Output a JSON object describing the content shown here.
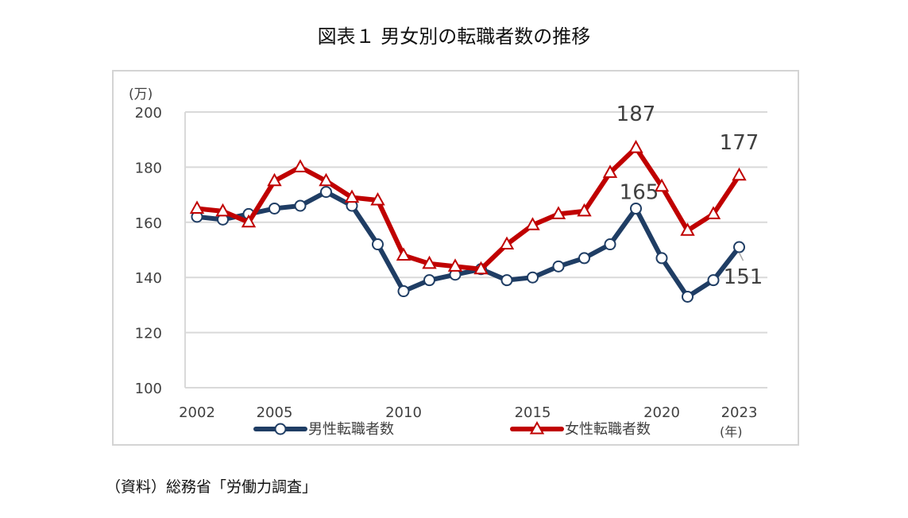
{
  "title": "図表１ 男女別の転職者数の推移",
  "source": "（資料）総務省「労働力調査」",
  "chart_data": {
    "type": "line",
    "x": [
      2002,
      2003,
      2004,
      2005,
      2006,
      2007,
      2008,
      2009,
      2010,
      2011,
      2012,
      2013,
      2014,
      2015,
      2016,
      2017,
      2018,
      2019,
      2020,
      2021,
      2022,
      2023
    ],
    "x_tick_labels": [
      "2002",
      "2005",
      "2010",
      "2015",
      "2020",
      "2023"
    ],
    "x_unit": "(年)",
    "y_unit": "(万)",
    "ylim": [
      100,
      200
    ],
    "y_ticks": [
      100,
      120,
      140,
      160,
      180,
      200
    ],
    "grid": true,
    "legend_position": "bottom",
    "series": [
      {
        "name": "男性転職者数",
        "color": "#1f3d64",
        "marker": "circle",
        "values": [
          162,
          161,
          163,
          165,
          166,
          171,
          166,
          152,
          135,
          139,
          141,
          143,
          139,
          140,
          144,
          147,
          152,
          165,
          147,
          133,
          139,
          151
        ]
      },
      {
        "name": "女性転職者数",
        "color": "#c00000",
        "marker": "triangle",
        "values": [
          165,
          164,
          160,
          175,
          180,
          175,
          169,
          168,
          148,
          145,
          144,
          143,
          152,
          159,
          163,
          164,
          178,
          187,
          173,
          157,
          163,
          177
        ]
      }
    ],
    "annotations": [
      {
        "series": 1,
        "x": 2019,
        "text": "187"
      },
      {
        "series": 1,
        "x": 2023,
        "text": "177"
      },
      {
        "series": 0,
        "x": 2019,
        "text": "165"
      },
      {
        "series": 0,
        "x": 2023,
        "text": "151"
      }
    ]
  }
}
